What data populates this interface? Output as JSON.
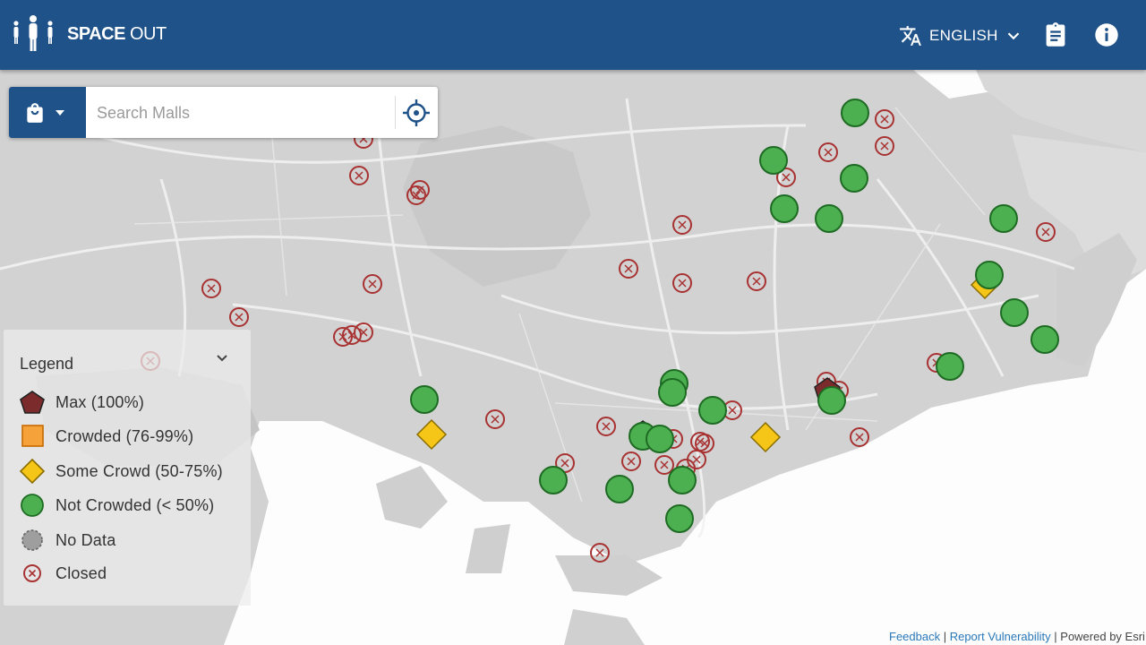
{
  "header": {
    "title_bold": "SPACE",
    "title_rest": " OUT",
    "language": "ENGLISH",
    "logo_icon": "people-distance-icon",
    "translate_icon": "translate-icon",
    "clipboard_icon": "clipboard-icon",
    "info_icon": "info-icon",
    "color": "#1f5288"
  },
  "search": {
    "placeholder": "Search Malls",
    "category_icon": "shopping-bag-icon",
    "locate_icon": "crosshair-icon"
  },
  "legend": {
    "title": "Legend",
    "items": [
      {
        "label": "Max (100%)",
        "color": "#7b2b2b"
      },
      {
        "label": "Crowded (76-99%)",
        "color": "#f5a23a"
      },
      {
        "label": "Some Crowd (50-75%)",
        "color": "#f5c518"
      },
      {
        "label": "Not Crowded (< 50%)",
        "color": "#4caf50"
      },
      {
        "label": "No Data",
        "color": "#9e9e9e"
      },
      {
        "label": "Closed",
        "color": "#a83232"
      }
    ]
  },
  "footer": {
    "feedback": "Feedback",
    "sep1": " | ",
    "report": "Report Vulnerability",
    "sep2": " | Powered by Esri"
  }
}
